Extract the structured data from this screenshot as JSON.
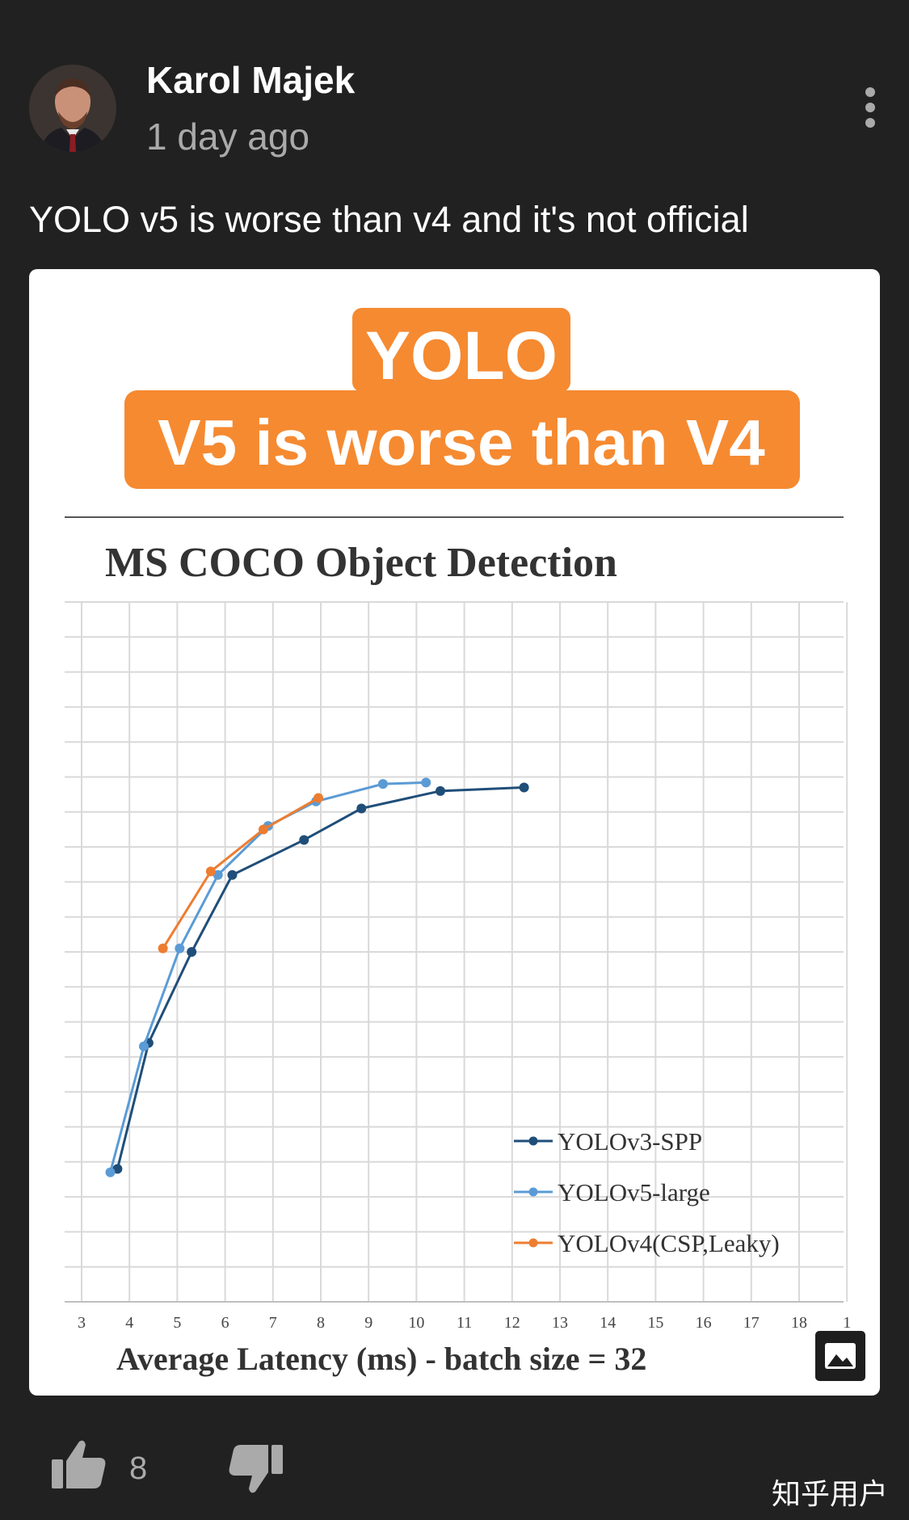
{
  "post": {
    "author": "Karol Majek",
    "time": "1 day ago",
    "comment": "YOLO v5 is worse than v4 and it's not official"
  },
  "image": {
    "banner_line1": "YOLO",
    "banner_line2": "V5 is worse than V4",
    "banner_color": "#f58a31"
  },
  "chart_data": {
    "type": "line",
    "title": "MS COCO Object Detection",
    "xlabel": "Average Latency (ms) - batch size = 32",
    "ylabel": "",
    "xlim": [
      3,
      19
    ],
    "x_ticks": [
      "3",
      "4",
      "5",
      "6",
      "7",
      "8",
      "9",
      "10",
      "11",
      "12",
      "13",
      "14",
      "15",
      "16",
      "17",
      "18",
      "1"
    ],
    "grid": true,
    "legend_position": "bottom-right",
    "series": [
      {
        "name": "YOLOv3-SPP",
        "color": "#1f4e79",
        "x": [
          3.75,
          4.4,
          5.3,
          6.15,
          7.65,
          8.85,
          10.5,
          12.25
        ],
        "y": [
          0.19,
          0.37,
          0.5,
          0.61,
          0.66,
          0.705,
          0.73,
          0.735
        ]
      },
      {
        "name": "YOLOv5-large",
        "color": "#5b9bd5",
        "x": [
          3.6,
          4.3,
          5.05,
          5.85,
          6.9,
          7.9,
          9.3,
          10.2
        ],
        "y": [
          0.185,
          0.365,
          0.505,
          0.61,
          0.68,
          0.715,
          0.74,
          0.742
        ]
      },
      {
        "name": "YOLOv4(CSP,Leaky)",
        "color": "#ed7d31",
        "x": [
          4.7,
          5.7,
          6.8,
          7.95
        ],
        "y": [
          0.505,
          0.615,
          0.675,
          0.72
        ]
      }
    ]
  },
  "actions": {
    "like_count": "8"
  },
  "watermark": "知乎用户"
}
